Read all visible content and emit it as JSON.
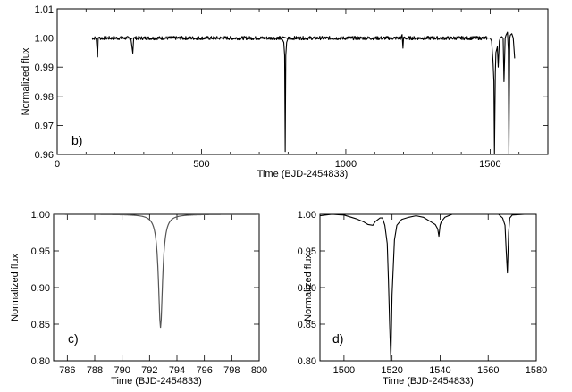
{
  "chart_data": [
    {
      "type": "line",
      "panel_label": "b)",
      "xlabel": "Time (BJD-2454833)",
      "ylabel": "Normalized flux",
      "xlim": [
        0,
        1700
      ],
      "ylim": [
        0.96,
        1.01
      ],
      "xticks": [
        0,
        500,
        1000,
        1500
      ],
      "yticks": [
        0.96,
        0.97,
        0.98,
        0.99,
        1.0,
        1.01
      ],
      "ytick_labels": [
        "0.96",
        "0.97",
        "0.98",
        "0.99",
        "1.00",
        "1.01"
      ],
      "series": [
        {
          "x": [
            120,
            135,
            140,
            142,
            150,
            200,
            255,
            262,
            265,
            300,
            350,
            400,
            450,
            500,
            550,
            600,
            650,
            700,
            750,
            780,
            785,
            788,
            790,
            792,
            795,
            800,
            850,
            900,
            950,
            1000,
            1050,
            1100,
            1150,
            1190,
            1195,
            1198,
            1200,
            1250,
            1300,
            1350,
            1400,
            1450,
            1480,
            1500,
            1505,
            1510,
            1513,
            1515,
            1518,
            1520,
            1525,
            1528,
            1532,
            1535,
            1540,
            1545,
            1548,
            1552,
            1555,
            1560,
            1563,
            1565,
            1568,
            1570,
            1575,
            1580,
            1585
          ],
          "y": [
            1.0,
            1.0,
            0.9935,
            1.0,
            1.0,
            1.0,
            1.0,
            0.9948,
            1.0,
            1.0,
            1.0,
            1.0,
            1.0,
            1.0,
            1.0,
            1.0,
            1.0,
            1.0,
            1.0,
            0.9995,
            0.9985,
            0.994,
            0.961,
            0.994,
            0.9985,
            1.0,
            1.0,
            1.0,
            1.0,
            1.0,
            1.0,
            1.0,
            1.0,
            1.0,
            1.0012,
            0.9965,
            1.0,
            1.0,
            1.0,
            1.0,
            1.0,
            1.0,
            1.0,
            1.0,
            0.999,
            0.992,
            0.985,
            0.96,
            0.988,
            0.995,
            0.997,
            0.99,
            0.999,
            1.0,
            1.0005,
            1.0,
            0.985,
            1.0,
            1.001,
            1.002,
            0.996,
            0.96,
            1.0,
            1.001,
            1.0015,
            1.0,
            0.993
          ]
        }
      ]
    },
    {
      "type": "line",
      "panel_label": "c)",
      "xlabel": "Time (BJD-2454833)",
      "ylabel": "Normalized flux",
      "xlim": [
        785,
        800
      ],
      "ylim": [
        0.8,
        1.0
      ],
      "xticks": [
        786,
        788,
        790,
        792,
        794,
        796,
        798,
        800
      ],
      "yticks": [
        0.8,
        0.85,
        0.9,
        0.95,
        1.0
      ],
      "ytick_labels": [
        "0.80",
        "0.85",
        "0.90",
        "0.95",
        "1.00"
      ],
      "dip_center": 792.8,
      "dip_min": 0.845
    },
    {
      "type": "line",
      "panel_label": "d)",
      "xlabel": "Time (BJD-2454833)",
      "ylabel": "Normalized flux",
      "xlim": [
        1490,
        1580
      ],
      "ylim": [
        0.8,
        1.0
      ],
      "xticks": [
        1500,
        1520,
        1540,
        1560,
        1580
      ],
      "yticks": [
        0.8,
        0.85,
        0.9,
        0.95,
        1.0
      ],
      "ytick_labels": [
        "0.80",
        "0.85",
        "0.90",
        "0.95",
        "1.00"
      ],
      "series": [
        {
          "x": [
            1490,
            1495,
            1500,
            1505,
            1508,
            1510,
            1512,
            1513,
            1515,
            1516,
            1517,
            1518,
            1518.5,
            1519,
            1519.5,
            1520,
            1521,
            1522,
            1524,
            1527,
            1530,
            1533,
            1536,
            1538,
            1539,
            1539.5,
            1540,
            1540.5,
            1541,
            1542,
            1545,
            1550,
            1555,
            1560,
            1564,
            1566,
            1567,
            1567.5,
            1568,
            1568.5,
            1569,
            1570,
            1575,
            1580
          ],
          "y": [
            0.998,
            1.0,
            0.999,
            0.994,
            0.99,
            0.986,
            0.985,
            0.99,
            0.995,
            0.995,
            0.985,
            0.96,
            0.91,
            0.85,
            0.8,
            0.89,
            0.965,
            0.985,
            0.993,
            0.996,
            0.998,
            0.996,
            0.99,
            0.986,
            0.98,
            0.97,
            0.985,
            0.99,
            0.992,
            0.996,
            1.0,
            1.001,
            1.002,
            1.002,
            1.001,
            0.995,
            0.985,
            0.95,
            0.92,
            0.975,
            0.995,
            0.999,
            1.0,
            1.0
          ]
        }
      ]
    }
  ]
}
